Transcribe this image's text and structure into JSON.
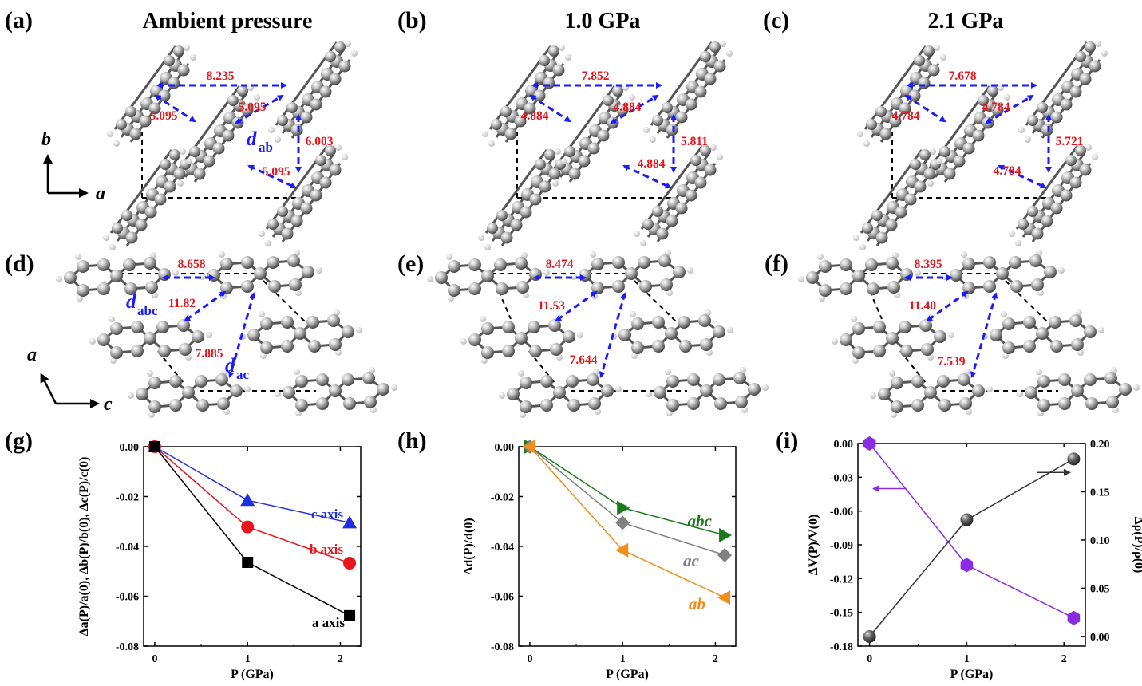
{
  "panels": {
    "a": {
      "label": "(a)",
      "title": "Ambient pressure",
      "distances": {
        "d1": "8.235",
        "d2": "5.095",
        "d3": "5.095",
        "d4": "6.003",
        "d5": "5.095"
      },
      "dab": {
        "symbol": "d",
        "sub": "ab"
      }
    },
    "b": {
      "label": "(b)",
      "title": "1.0 GPa",
      "distances": {
        "d1": "7.852",
        "d2": "4.884",
        "d3": "4.884",
        "d4": "5.811",
        "d5": "4.884"
      }
    },
    "c": {
      "label": "(c)",
      "title": "2.1 GPa",
      "distances": {
        "d1": "7.678",
        "d2": "4.784",
        "d3": "4.784",
        "d4": "5.721",
        "d5": "4.784"
      }
    },
    "d": {
      "label": "(d)",
      "distances": {
        "d1": "8.658",
        "d2": "11.82",
        "d3": "7.885"
      },
      "dabc": {
        "symbol": "d",
        "sub": "abc"
      },
      "dac": {
        "symbol": "d",
        "sub": "ac"
      }
    },
    "e": {
      "label": "(e)",
      "distances": {
        "d1": "8.474",
        "d2": "11.53",
        "d3": "7.644"
      }
    },
    "f": {
      "label": "(f)",
      "distances": {
        "d1": "8.395",
        "d2": "11.40",
        "d3": "7.539"
      }
    },
    "g": {
      "label": "(g)"
    },
    "h": {
      "label": "(h)"
    },
    "i": {
      "label": "(i)"
    }
  },
  "axes_ab": {
    "vertical": "b",
    "horizontal": "a"
  },
  "axes_ac": {
    "vertical": "a",
    "horizontal": "c"
  },
  "colors": {
    "blue_arrow": "#1a1aff",
    "red_text": "#e8141b",
    "c_axis": "#1f2fe0",
    "b_axis": "#e8141b",
    "a_axis": "#000000",
    "abc": "#1a7a1a",
    "ac": "#808080",
    "ab": "#f28c1a",
    "volume": "#8b2be2",
    "density": "#333333"
  },
  "chart_data": [
    {
      "type": "line",
      "panel": "g",
      "xlabel": "P (GPa)",
      "ylabel": "Δa(P)/a(0), Δb(P)/b(0), Δc(P)/c(0)",
      "xlim": [
        -0.12,
        2.22
      ],
      "ylim": [
        -0.08,
        0.0
      ],
      "xticks": [
        "0",
        "1",
        "2"
      ],
      "yticks": [
        "0.00",
        "-0.02",
        "-0.04",
        "-0.06",
        "-0.08"
      ],
      "x": [
        0,
        1.0,
        2.1
      ],
      "series": [
        {
          "name": "c axis",
          "values": [
            0.0,
            -0.0215,
            -0.0305
          ],
          "color": "#1f2fe0",
          "marker": "triangle-up"
        },
        {
          "name": "b axis",
          "values": [
            0.0,
            -0.0322,
            -0.0467
          ],
          "color": "#e8141b",
          "marker": "circle"
        },
        {
          "name": "a axis",
          "values": [
            0.0,
            -0.0464,
            -0.0678
          ],
          "color": "#000000",
          "marker": "square"
        }
      ]
    },
    {
      "type": "line",
      "panel": "h",
      "xlabel": "P (GPa)",
      "ylabel": "Δd(P)/d(0)",
      "xlim": [
        -0.12,
        2.22
      ],
      "ylim": [
        -0.08,
        0.0
      ],
      "xticks": [
        "0",
        "1",
        "2"
      ],
      "yticks": [
        "0.00",
        "-0.02",
        "-0.04",
        "-0.06",
        "-0.08"
      ],
      "x": [
        0,
        1.0,
        2.1
      ],
      "series": [
        {
          "name": "abc",
          "values": [
            0.0,
            -0.0245,
            -0.0355
          ],
          "color": "#1a7a1a",
          "marker": "triangle-right"
        },
        {
          "name": "ac",
          "values": [
            0.0,
            -0.0305,
            -0.0435
          ],
          "color": "#808080",
          "marker": "diamond"
        },
        {
          "name": "ab",
          "values": [
            0.0,
            -0.0415,
            -0.0605
          ],
          "color": "#f28c1a",
          "marker": "triangle-left"
        }
      ]
    },
    {
      "type": "line",
      "panel": "i",
      "xlabel": "P (GPa)",
      "ylabel_left": "ΔV(P)/V(0)",
      "ylabel_right": "Δρ(P)/ρ(0)",
      "xlim": [
        -0.12,
        2.22
      ],
      "ylim_left": [
        -0.18,
        0.0
      ],
      "ylim_right": [
        -0.01,
        0.2
      ],
      "xticks": [
        "0",
        "1",
        "2"
      ],
      "yticks_left": [
        "0.00",
        "-0.03",
        "-0.06",
        "-0.09",
        "-0.12",
        "-0.15",
        "-0.18"
      ],
      "yticks_right": [
        "0.20",
        "0.15",
        "0.10",
        "0.05",
        "0.00"
      ],
      "x": [
        0,
        1.0,
        2.1
      ],
      "series": [
        {
          "name": "ΔV(P)/V(0)",
          "axis": "left",
          "values": [
            0.0,
            -0.108,
            -0.155
          ],
          "color": "#8b2be2",
          "marker": "hexagon"
        },
        {
          "name": "Δρ(P)/ρ(0)",
          "axis": "right",
          "values": [
            0.0,
            0.121,
            0.184
          ],
          "color": "#333333",
          "marker": "sphere"
        }
      ]
    }
  ]
}
